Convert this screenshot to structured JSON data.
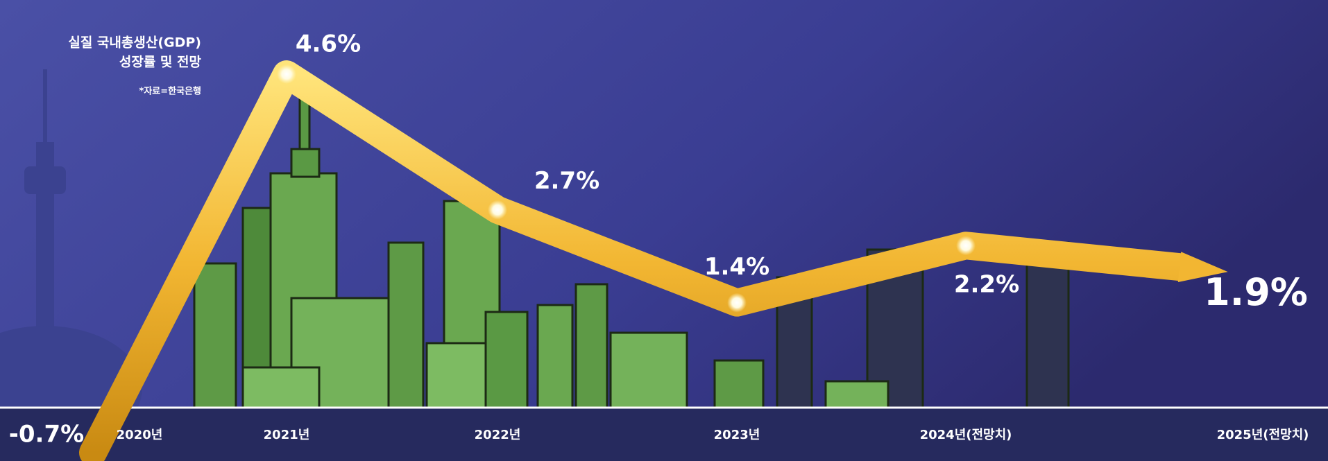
{
  "chart_data": {
    "type": "line",
    "title": [
      "실질 국내총생산(GDP)",
      "성장률 및 전망"
    ],
    "source": "*자료=한국은행",
    "categories": [
      "2020년",
      "2021년",
      "2022년",
      "2023년",
      "2024년(전망치)",
      "2025년(전망치)"
    ],
    "values": [
      -0.7,
      4.6,
      2.7,
      1.4,
      2.2,
      1.9
    ],
    "value_labels": [
      "-0.7%",
      "4.6%",
      "2.7%",
      "1.4%",
      "2.2%",
      "1.9%"
    ],
    "color": "#f2b632"
  }
}
